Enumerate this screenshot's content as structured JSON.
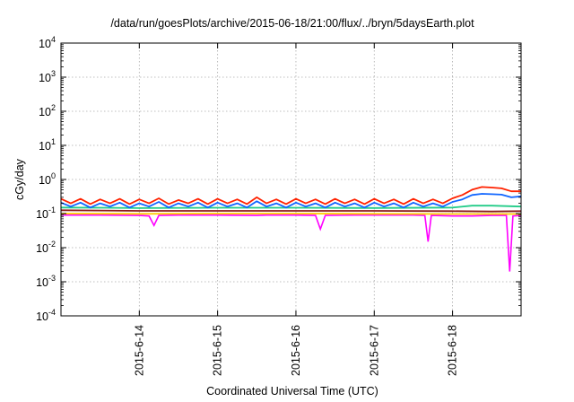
{
  "chart_data": {
    "type": "line",
    "title": "/data/run/goesPlots/archive/2015-06-18/21:00/flux/../bryn/5daysEarth.plot",
    "xlabel": "Coordinated Universal Time (UTC)",
    "ylabel": "cGy/day",
    "yscale": "log",
    "ylim": [
      0.0001,
      10000
    ],
    "y_ticks": [
      {
        "value": 0.0001,
        "base": "10",
        "exp": "-4"
      },
      {
        "value": 0.001,
        "base": "10",
        "exp": "-3"
      },
      {
        "value": 0.01,
        "base": "10",
        "exp": "-2"
      },
      {
        "value": 0.1,
        "base": "10",
        "exp": "-1"
      },
      {
        "value": 1,
        "base": "10",
        "exp": "0"
      },
      {
        "value": 10,
        "base": "10",
        "exp": "1"
      },
      {
        "value": 100,
        "base": "10",
        "exp": "2"
      },
      {
        "value": 1000,
        "base": "10",
        "exp": "3"
      },
      {
        "value": 10000,
        "base": "10",
        "exp": "4"
      }
    ],
    "x_start": "2015-06-13T00:00",
    "x_end": "2015-06-18T21:00",
    "x_ticks": [
      {
        "value": "2015-06-14T00:00",
        "label": "2015-6-14"
      },
      {
        "value": "2015-06-15T00:00",
        "label": "2015-6-15"
      },
      {
        "value": "2015-06-16T00:00",
        "label": "2015-6-16"
      },
      {
        "value": "2015-06-17T00:00",
        "label": "2015-6-17"
      },
      {
        "value": "2015-06-18T00:00",
        "label": "2015-6-18"
      }
    ],
    "grid": true,
    "series": [
      {
        "color": "#ff00ff",
        "fill": true,
        "points": [
          [
            "2015-06-13T00:00",
            0.09
          ],
          [
            "2015-06-13T12:00",
            0.09
          ],
          [
            "2015-06-14T00:00",
            0.088
          ],
          [
            "2015-06-14T03:00",
            0.085
          ],
          [
            "2015-06-14T04:30",
            0.045
          ],
          [
            "2015-06-14T06:00",
            0.088
          ],
          [
            "2015-06-14T12:00",
            0.09
          ],
          [
            "2015-06-15T00:00",
            0.09
          ],
          [
            "2015-06-15T12:00",
            0.088
          ],
          [
            "2015-06-15T15:00",
            0.09
          ],
          [
            "2015-06-16T00:00",
            0.09
          ],
          [
            "2015-06-16T06:00",
            0.088
          ],
          [
            "2015-06-16T07:30",
            0.035
          ],
          [
            "2015-06-16T09:00",
            0.088
          ],
          [
            "2015-06-16T18:00",
            0.09
          ],
          [
            "2015-06-17T00:00",
            0.09
          ],
          [
            "2015-06-17T12:00",
            0.09
          ],
          [
            "2015-06-17T15:30",
            0.088
          ],
          [
            "2015-06-17T16:30",
            0.015
          ],
          [
            "2015-06-17T17:30",
            0.088
          ],
          [
            "2015-06-18T00:00",
            0.085
          ],
          [
            "2015-06-18T06:00",
            0.085
          ],
          [
            "2015-06-18T12:00",
            0.088
          ],
          [
            "2015-06-18T16:30",
            0.088
          ],
          [
            "2015-06-18T17:30",
            0.002
          ],
          [
            "2015-06-18T18:30",
            0.085
          ],
          [
            "2015-06-18T21:00",
            0.088
          ]
        ]
      },
      {
        "color": "#8b1a1a",
        "fill": false,
        "points": [
          [
            "2015-06-13T00:00",
            0.125
          ],
          [
            "2015-06-14T00:00",
            0.12
          ],
          [
            "2015-06-15T00:00",
            0.12
          ],
          [
            "2015-06-16T00:00",
            0.12
          ],
          [
            "2015-06-17T00:00",
            0.12
          ],
          [
            "2015-06-18T00:00",
            0.118
          ],
          [
            "2015-06-18T12:00",
            0.115
          ],
          [
            "2015-06-18T21:00",
            0.118
          ]
        ]
      },
      {
        "color": "#ffcc00",
        "fill": false,
        "points": [
          [
            "2015-06-13T00:00",
            0.1
          ],
          [
            "2015-06-14T00:00",
            0.098
          ],
          [
            "2015-06-15T00:00",
            0.1
          ],
          [
            "2015-06-16T00:00",
            0.1
          ],
          [
            "2015-06-17T00:00",
            0.098
          ],
          [
            "2015-06-18T00:00",
            0.097
          ],
          [
            "2015-06-18T21:00",
            0.097
          ]
        ]
      },
      {
        "color": "#22cc88",
        "fill": false,
        "points": [
          [
            "2015-06-13T00:00",
            0.15
          ],
          [
            "2015-06-13T12:00",
            0.148
          ],
          [
            "2015-06-14T00:00",
            0.145
          ],
          [
            "2015-06-15T00:00",
            0.148
          ],
          [
            "2015-06-16T00:00",
            0.148
          ],
          [
            "2015-06-17T00:00",
            0.146
          ],
          [
            "2015-06-18T00:00",
            0.15
          ],
          [
            "2015-06-18T06:00",
            0.17
          ],
          [
            "2015-06-18T12:00",
            0.17
          ],
          [
            "2015-06-18T21:00",
            0.16
          ]
        ]
      },
      {
        "color": "#ff2200",
        "fill": false,
        "points": [
          [
            "2015-06-13T00:00",
            0.27
          ],
          [
            "2015-06-13T03:00",
            0.2
          ],
          [
            "2015-06-13T06:00",
            0.27
          ],
          [
            "2015-06-13T09:00",
            0.19
          ],
          [
            "2015-06-13T12:00",
            0.26
          ],
          [
            "2015-06-13T15:00",
            0.2
          ],
          [
            "2015-06-13T18:00",
            0.27
          ],
          [
            "2015-06-13T21:00",
            0.19
          ],
          [
            "2015-06-14T00:00",
            0.26
          ],
          [
            "2015-06-14T03:00",
            0.2
          ],
          [
            "2015-06-14T06:00",
            0.28
          ],
          [
            "2015-06-14T09:00",
            0.19
          ],
          [
            "2015-06-14T12:00",
            0.25
          ],
          [
            "2015-06-14T15:00",
            0.2
          ],
          [
            "2015-06-14T18:00",
            0.27
          ],
          [
            "2015-06-14T21:00",
            0.19
          ],
          [
            "2015-06-15T00:00",
            0.27
          ],
          [
            "2015-06-15T03:00",
            0.2
          ],
          [
            "2015-06-15T06:00",
            0.26
          ],
          [
            "2015-06-15T09:00",
            0.19
          ],
          [
            "2015-06-15T12:00",
            0.3
          ],
          [
            "2015-06-15T15:00",
            0.2
          ],
          [
            "2015-06-15T18:00",
            0.26
          ],
          [
            "2015-06-15T21:00",
            0.19
          ],
          [
            "2015-06-16T00:00",
            0.27
          ],
          [
            "2015-06-16T03:00",
            0.2
          ],
          [
            "2015-06-16T06:00",
            0.26
          ],
          [
            "2015-06-16T09:00",
            0.19
          ],
          [
            "2015-06-16T12:00",
            0.27
          ],
          [
            "2015-06-16T15:00",
            0.2
          ],
          [
            "2015-06-16T18:00",
            0.26
          ],
          [
            "2015-06-16T21:00",
            0.19
          ],
          [
            "2015-06-17T00:00",
            0.27
          ],
          [
            "2015-06-17T03:00",
            0.2
          ],
          [
            "2015-06-17T06:00",
            0.26
          ],
          [
            "2015-06-17T09:00",
            0.19
          ],
          [
            "2015-06-17T12:00",
            0.27
          ],
          [
            "2015-06-17T15:00",
            0.2
          ],
          [
            "2015-06-17T18:00",
            0.26
          ],
          [
            "2015-06-17T21:00",
            0.2
          ],
          [
            "2015-06-18T00:00",
            0.28
          ],
          [
            "2015-06-18T03:00",
            0.35
          ],
          [
            "2015-06-18T06:00",
            0.5
          ],
          [
            "2015-06-18T09:00",
            0.6
          ],
          [
            "2015-06-18T12:00",
            0.58
          ],
          [
            "2015-06-18T15:00",
            0.55
          ],
          [
            "2015-06-18T18:00",
            0.45
          ],
          [
            "2015-06-18T21:00",
            0.45
          ]
        ]
      },
      {
        "color": "#1166ff",
        "fill": false,
        "points": [
          [
            "2015-06-13T00:00",
            0.21
          ],
          [
            "2015-06-13T03:00",
            0.16
          ],
          [
            "2015-06-13T06:00",
            0.21
          ],
          [
            "2015-06-13T09:00",
            0.15
          ],
          [
            "2015-06-13T12:00",
            0.2
          ],
          [
            "2015-06-13T15:00",
            0.16
          ],
          [
            "2015-06-13T18:00",
            0.21
          ],
          [
            "2015-06-13T21:00",
            0.15
          ],
          [
            "2015-06-14T00:00",
            0.2
          ],
          [
            "2015-06-14T03:00",
            0.16
          ],
          [
            "2015-06-14T06:00",
            0.22
          ],
          [
            "2015-06-14T09:00",
            0.15
          ],
          [
            "2015-06-14T12:00",
            0.2
          ],
          [
            "2015-06-14T15:00",
            0.16
          ],
          [
            "2015-06-14T18:00",
            0.21
          ],
          [
            "2015-06-14T21:00",
            0.15
          ],
          [
            "2015-06-15T00:00",
            0.21
          ],
          [
            "2015-06-15T03:00",
            0.16
          ],
          [
            "2015-06-15T06:00",
            0.2
          ],
          [
            "2015-06-15T09:00",
            0.15
          ],
          [
            "2015-06-15T12:00",
            0.23
          ],
          [
            "2015-06-15T15:00",
            0.16
          ],
          [
            "2015-06-15T18:00",
            0.2
          ],
          [
            "2015-06-15T21:00",
            0.15
          ],
          [
            "2015-06-16T00:00",
            0.21
          ],
          [
            "2015-06-16T03:00",
            0.16
          ],
          [
            "2015-06-16T06:00",
            0.2
          ],
          [
            "2015-06-16T09:00",
            0.15
          ],
          [
            "2015-06-16T12:00",
            0.21
          ],
          [
            "2015-06-16T15:00",
            0.16
          ],
          [
            "2015-06-16T18:00",
            0.2
          ],
          [
            "2015-06-16T21:00",
            0.15
          ],
          [
            "2015-06-17T00:00",
            0.21
          ],
          [
            "2015-06-17T03:00",
            0.16
          ],
          [
            "2015-06-17T06:00",
            0.2
          ],
          [
            "2015-06-17T09:00",
            0.15
          ],
          [
            "2015-06-17T12:00",
            0.21
          ],
          [
            "2015-06-17T15:00",
            0.16
          ],
          [
            "2015-06-17T18:00",
            0.2
          ],
          [
            "2015-06-17T21:00",
            0.16
          ],
          [
            "2015-06-18T00:00",
            0.22
          ],
          [
            "2015-06-18T03:00",
            0.26
          ],
          [
            "2015-06-18T06:00",
            0.35
          ],
          [
            "2015-06-18T09:00",
            0.38
          ],
          [
            "2015-06-18T12:00",
            0.37
          ],
          [
            "2015-06-18T15:00",
            0.36
          ],
          [
            "2015-06-18T18:00",
            0.3
          ],
          [
            "2015-06-18T21:00",
            0.32
          ]
        ]
      }
    ]
  }
}
